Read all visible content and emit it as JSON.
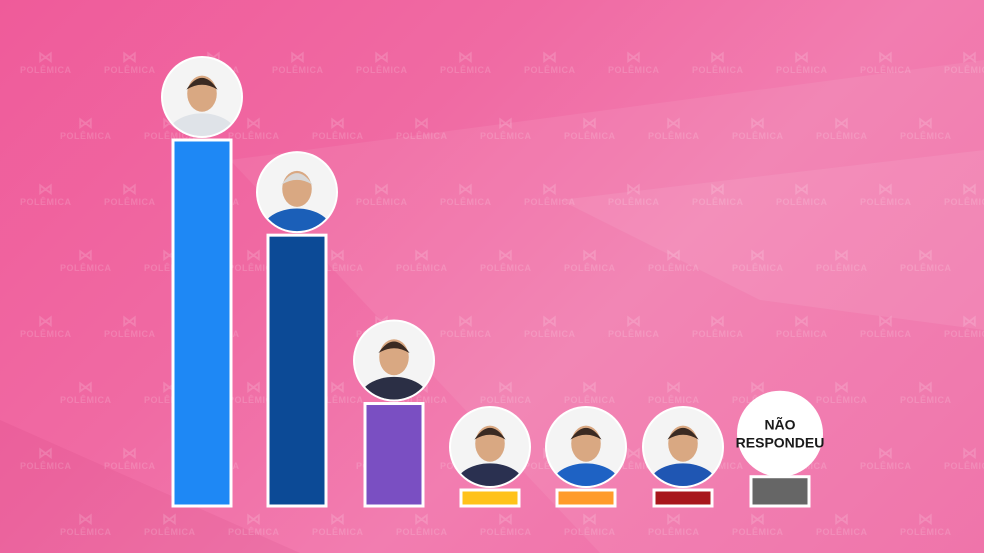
{
  "chart_data": {
    "type": "bar",
    "categories": [
      "",
      "",
      "",
      "",
      "",
      "",
      "Não respondeu"
    ],
    "values": [
      100,
      74,
      28,
      4,
      4,
      4,
      8
    ],
    "colors": [
      "#1e88f5",
      "#0c4a96",
      "#7a4fc2",
      "#ffc21a",
      "#ff9b2a",
      "#a8161b",
      "#666666"
    ],
    "no_answer_label_line1": "NÃO",
    "no_answer_label_line2": "RESPONDEU",
    "grid": false,
    "legend": "none"
  },
  "watermark": {
    "text": "POLÊMICA"
  }
}
